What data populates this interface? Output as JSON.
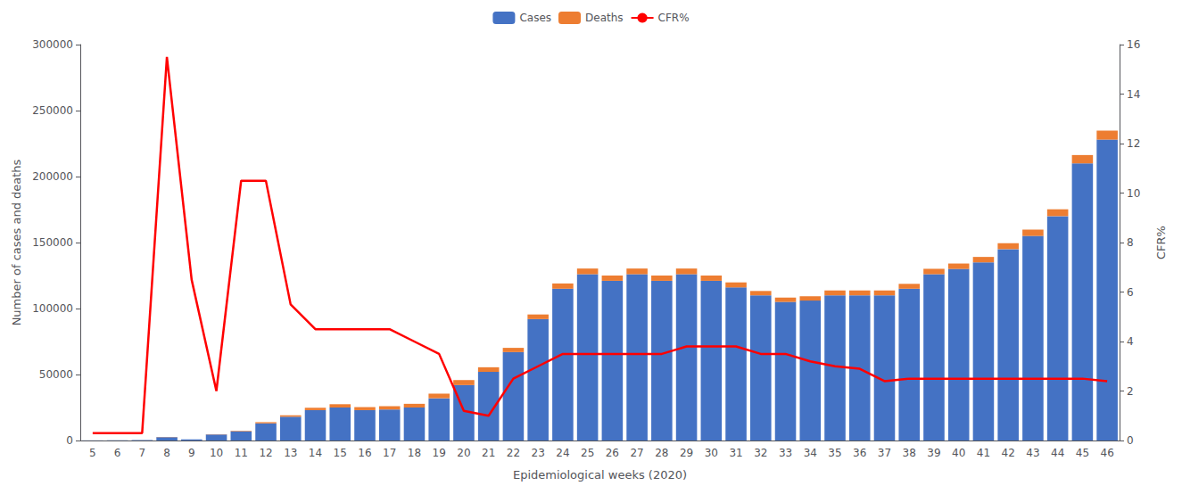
{
  "chart_data": {
    "type": "bar",
    "xlabel": "Epidemiological weeks (2020)",
    "ylabel": "Number of cases and deaths",
    "y2label": "CFR%",
    "categories": [
      "5",
      "6",
      "7",
      "8",
      "9",
      "10",
      "11",
      "12",
      "13",
      "14",
      "15",
      "16",
      "17",
      "18",
      "19",
      "20",
      "21",
      "22",
      "23",
      "24",
      "25",
      "26",
      "27",
      "28",
      "29",
      "30",
      "31",
      "32",
      "33",
      "34",
      "35",
      "36",
      "37",
      "38",
      "39",
      "40",
      "41",
      "42",
      "43",
      "44",
      "45",
      "46"
    ],
    "series": [
      {
        "name": "Cases",
        "type": "bar",
        "color": "#4472C4",
        "values": [
          100,
          200,
          300,
          2500,
          800,
          4500,
          7000,
          13000,
          18000,
          23000,
          25000,
          23000,
          23500,
          25000,
          32000,
          42000,
          52000,
          67000,
          92000,
          115000,
          126000,
          121000,
          126000,
          121000,
          126000,
          121000,
          116000,
          110000,
          105000,
          106000,
          110000,
          110000,
          110000,
          115000,
          126000,
          130000,
          135000,
          145000,
          155000,
          170000,
          210000,
          228000
        ]
      },
      {
        "name": "Deaths",
        "type": "bar",
        "color": "#ED7D31",
        "values": [
          5,
          10,
          15,
          150,
          60,
          200,
          400,
          900,
          1100,
          1800,
          2500,
          2300,
          2500,
          2800,
          3500,
          3800,
          3500,
          3200,
          3500,
          4000,
          4300,
          4000,
          4300,
          4000,
          4300,
          4000,
          3800,
          3300,
          3300,
          3300,
          3700,
          3700,
          3700,
          3700,
          4100,
          4100,
          4100,
          4500,
          4800,
          5200,
          6300,
          6800
        ]
      },
      {
        "name": "CFR%",
        "type": "line",
        "axis": "y2",
        "color": "#FF0000",
        "values": [
          0.3,
          0.3,
          0.3,
          15.5,
          6.5,
          2.0,
          10.5,
          10.5,
          5.5,
          4.5,
          4.5,
          4.5,
          4.5,
          4.0,
          3.5,
          1.2,
          1.0,
          2.5,
          3.0,
          3.5,
          3.5,
          3.5,
          3.5,
          3.5,
          3.8,
          3.8,
          3.8,
          3.5,
          3.5,
          3.2,
          3.0,
          2.9,
          2.4,
          2.5,
          2.5,
          2.5,
          2.5,
          2.5,
          2.5,
          2.5,
          2.5,
          2.4
        ]
      }
    ],
    "stacked": true,
    "ylim": [
      0,
      300000
    ],
    "yticks": [
      0,
      50000,
      100000,
      150000,
      200000,
      250000,
      300000
    ],
    "y2lim": [
      0,
      16
    ],
    "y2ticks": [
      0,
      2,
      4,
      6,
      8,
      10,
      12,
      14,
      16
    ],
    "grid": false,
    "legend": "top"
  }
}
